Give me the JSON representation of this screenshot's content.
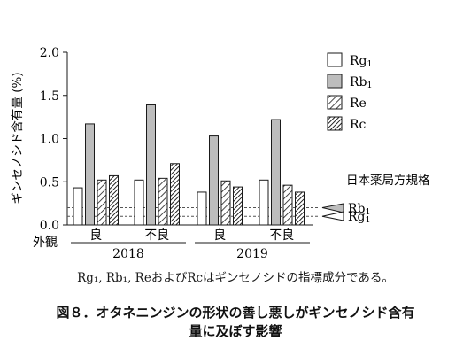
{
  "chart_data": {
    "type": "bar",
    "ylabel": "ギンセノシド含有量 (%)",
    "ylim": [
      0,
      2.0
    ],
    "yticks": [
      "0.0",
      "0.5",
      "1.0",
      "1.5",
      "2.0"
    ],
    "row_label": "外観",
    "groups": [
      {
        "appearance": "良",
        "year": "2018"
      },
      {
        "appearance": "不良",
        "year": "2018"
      },
      {
        "appearance": "良",
        "year": "2019"
      },
      {
        "appearance": "不良",
        "year": "2019"
      }
    ],
    "years": [
      "2018",
      "2019"
    ],
    "series": [
      {
        "name": "Rg",
        "sub": "1",
        "fill": "white",
        "values": [
          0.43,
          0.52,
          0.38,
          0.52
        ]
      },
      {
        "name": "Rb",
        "sub": "1",
        "fill": "gray",
        "values": [
          1.17,
          1.39,
          1.03,
          1.22
        ]
      },
      {
        "name": "Re",
        "sub": "",
        "fill": "hatch-light",
        "values": [
          0.52,
          0.54,
          0.51,
          0.46
        ]
      },
      {
        "name": "Rc",
        "sub": "",
        "fill": "hatch-dense",
        "values": [
          0.57,
          0.71,
          0.44,
          0.38
        ]
      }
    ],
    "legend_position": "top-right",
    "standard": {
      "title": "日本薬局方規格",
      "lines": [
        {
          "name": "Rb",
          "sub": "1",
          "value": 0.2,
          "fill": "gray"
        },
        {
          "name": "Rg",
          "sub": "1",
          "value": 0.1,
          "fill": "white"
        }
      ]
    }
  },
  "note": "Rg₁, Rb₁, ReおよびRcはギンセノシドの指標成分である。",
  "caption": {
    "line1": "図８．オタネニンジンの形状の善し悪しがギンセノシド含有",
    "line2": "量に及ぼす影響"
  },
  "colors": {
    "gray": "#bdbdbd",
    "ink": "#1a1a1a"
  }
}
